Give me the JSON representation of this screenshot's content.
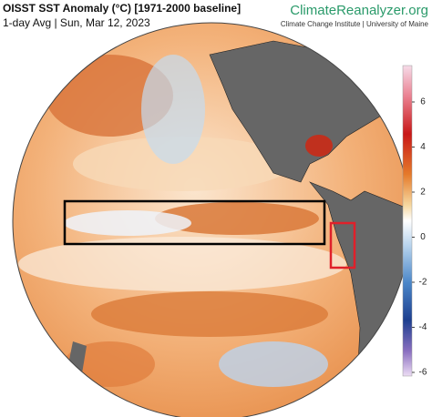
{
  "header": {
    "title": "OISST SST Anomaly (°C) [1971-2000 baseline]",
    "subtitle": "1-day Avg | Sun, Mar 12, 2023"
  },
  "brand": {
    "name": "ClimateReanalyzer.org",
    "org": "Climate Change Institute | University of Maine"
  },
  "colorbar": {
    "lim": [
      -6,
      6
    ],
    "ticks": [
      6,
      4,
      2,
      0,
      -2,
      -4,
      -6
    ]
  }
}
